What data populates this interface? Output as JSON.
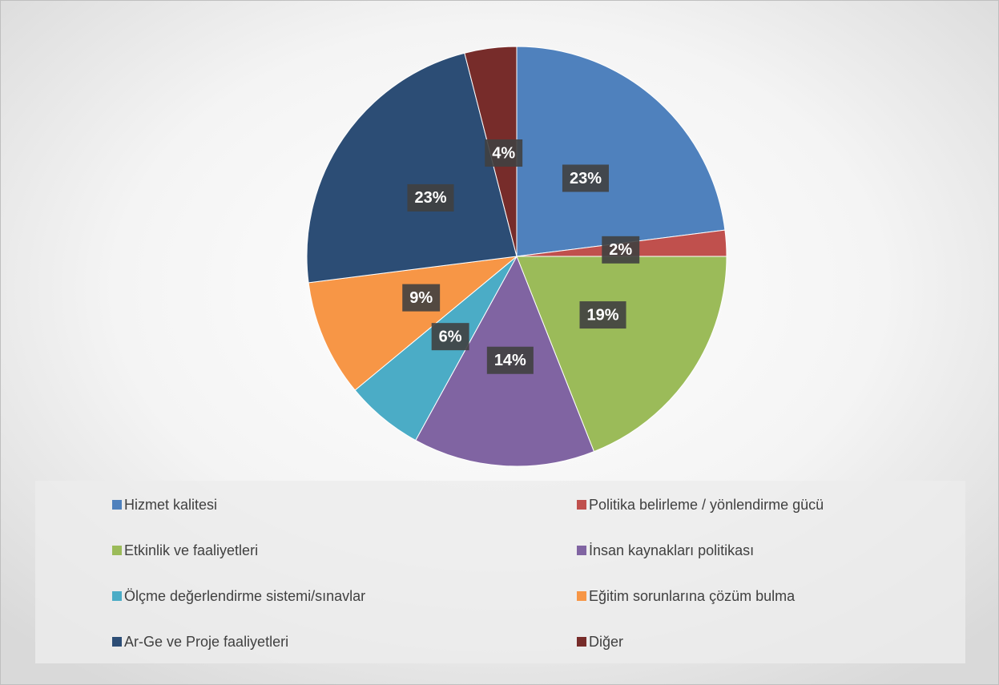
{
  "chart_data": {
    "type": "pie",
    "categories": [
      "Hizmet kalitesi",
      "Politika belirleme / yönlendirme gücü",
      "Etkinlik ve faaliyetleri",
      "İnsan kaynakları politikası",
      "Ölçme değerlendirme sistemi/sınavlar",
      "Eğitim sorunlarına çözüm bulma",
      "Ar-Ge ve Proje faaliyetleri",
      "Diğer"
    ],
    "values": [
      23,
      2,
      19,
      14,
      6,
      9,
      23,
      4
    ],
    "value_labels": [
      "23%",
      "2%",
      "19%",
      "14%",
      "6%",
      "9%",
      "23%",
      "4%"
    ],
    "colors": [
      "#4f81bd",
      "#c0504d",
      "#9bbb59",
      "#8064a2",
      "#4bacc6",
      "#f79646",
      "#2c4d75",
      "#772c2a"
    ],
    "legend": "bottom"
  }
}
